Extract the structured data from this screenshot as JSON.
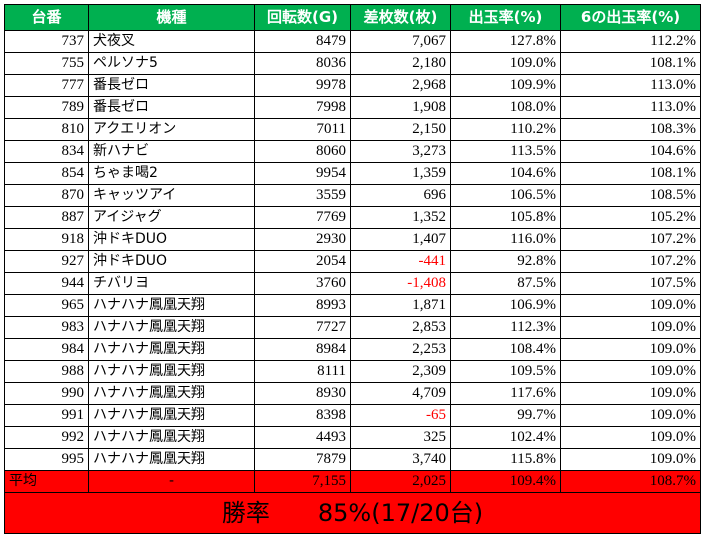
{
  "headers": [
    "台番",
    "機種",
    "回転数(G)",
    "差枚数(枚)",
    "出玉率(%)",
    "6の出玉率(%)"
  ],
  "rows": [
    {
      "id": "737",
      "name": "犬夜叉",
      "spins": "8479",
      "diff": "7,067",
      "neg": false,
      "rate": "127.8%",
      "rate6": "112.2%"
    },
    {
      "id": "755",
      "name": "ペルソナ5",
      "spins": "8036",
      "diff": "2,180",
      "neg": false,
      "rate": "109.0%",
      "rate6": "108.1%"
    },
    {
      "id": "777",
      "name": "番長ゼロ",
      "spins": "9978",
      "diff": "2,968",
      "neg": false,
      "rate": "109.9%",
      "rate6": "113.0%"
    },
    {
      "id": "789",
      "name": "番長ゼロ",
      "spins": "7998",
      "diff": "1,908",
      "neg": false,
      "rate": "108.0%",
      "rate6": "113.0%"
    },
    {
      "id": "810",
      "name": "アクエリオン",
      "spins": "7011",
      "diff": "2,150",
      "neg": false,
      "rate": "110.2%",
      "rate6": "108.3%"
    },
    {
      "id": "834",
      "name": "新ハナビ",
      "spins": "8060",
      "diff": "3,273",
      "neg": false,
      "rate": "113.5%",
      "rate6": "104.6%"
    },
    {
      "id": "854",
      "name": "ちゃま喝2",
      "spins": "9954",
      "diff": "1,359",
      "neg": false,
      "rate": "104.6%",
      "rate6": "108.1%"
    },
    {
      "id": "870",
      "name": "キャッツアイ",
      "spins": "3559",
      "diff": "696",
      "neg": false,
      "rate": "106.5%",
      "rate6": "108.5%"
    },
    {
      "id": "887",
      "name": "アイジャグ",
      "spins": "7769",
      "diff": "1,352",
      "neg": false,
      "rate": "105.8%",
      "rate6": "105.2%"
    },
    {
      "id": "918",
      "name": "沖ドキDUO",
      "spins": "2930",
      "diff": "1,407",
      "neg": false,
      "rate": "116.0%",
      "rate6": "107.2%"
    },
    {
      "id": "927",
      "name": "沖ドキDUO",
      "spins": "2054",
      "diff": "-441",
      "neg": true,
      "rate": "92.8%",
      "rate6": "107.2%"
    },
    {
      "id": "944",
      "name": "チバリヨ",
      "spins": "3760",
      "diff": "-1,408",
      "neg": true,
      "rate": "87.5%",
      "rate6": "107.5%"
    },
    {
      "id": "965",
      "name": "ハナハナ鳳凰天翔",
      "spins": "8993",
      "diff": "1,871",
      "neg": false,
      "rate": "106.9%",
      "rate6": "109.0%"
    },
    {
      "id": "983",
      "name": "ハナハナ鳳凰天翔",
      "spins": "7727",
      "diff": "2,853",
      "neg": false,
      "rate": "112.3%",
      "rate6": "109.0%"
    },
    {
      "id": "984",
      "name": "ハナハナ鳳凰天翔",
      "spins": "8984",
      "diff": "2,253",
      "neg": false,
      "rate": "108.4%",
      "rate6": "109.0%"
    },
    {
      "id": "988",
      "name": "ハナハナ鳳凰天翔",
      "spins": "8111",
      "diff": "2,309",
      "neg": false,
      "rate": "109.5%",
      "rate6": "109.0%"
    },
    {
      "id": "990",
      "name": "ハナハナ鳳凰天翔",
      "spins": "8930",
      "diff": "4,709",
      "neg": false,
      "rate": "117.6%",
      "rate6": "109.0%"
    },
    {
      "id": "991",
      "name": "ハナハナ鳳凰天翔",
      "spins": "8398",
      "diff": "-65",
      "neg": true,
      "rate": "99.7%",
      "rate6": "109.0%"
    },
    {
      "id": "992",
      "name": "ハナハナ鳳凰天翔",
      "spins": "4493",
      "diff": "325",
      "neg": false,
      "rate": "102.4%",
      "rate6": "109.0%"
    },
    {
      "id": "995",
      "name": "ハナハナ鳳凰天翔",
      "spins": "7879",
      "diff": "3,740",
      "neg": false,
      "rate": "115.8%",
      "rate6": "109.0%"
    }
  ],
  "average": {
    "label": "平均",
    "name": "-",
    "spins": "7,155",
    "diff": "2,025",
    "rate": "109.4%",
    "rate6": "108.7%"
  },
  "win": {
    "label": "勝率",
    "value": "85%(17/20台)"
  },
  "colors": {
    "header": "#00b050",
    "highlight": "#ff0000",
    "negative": "#ff0000"
  }
}
